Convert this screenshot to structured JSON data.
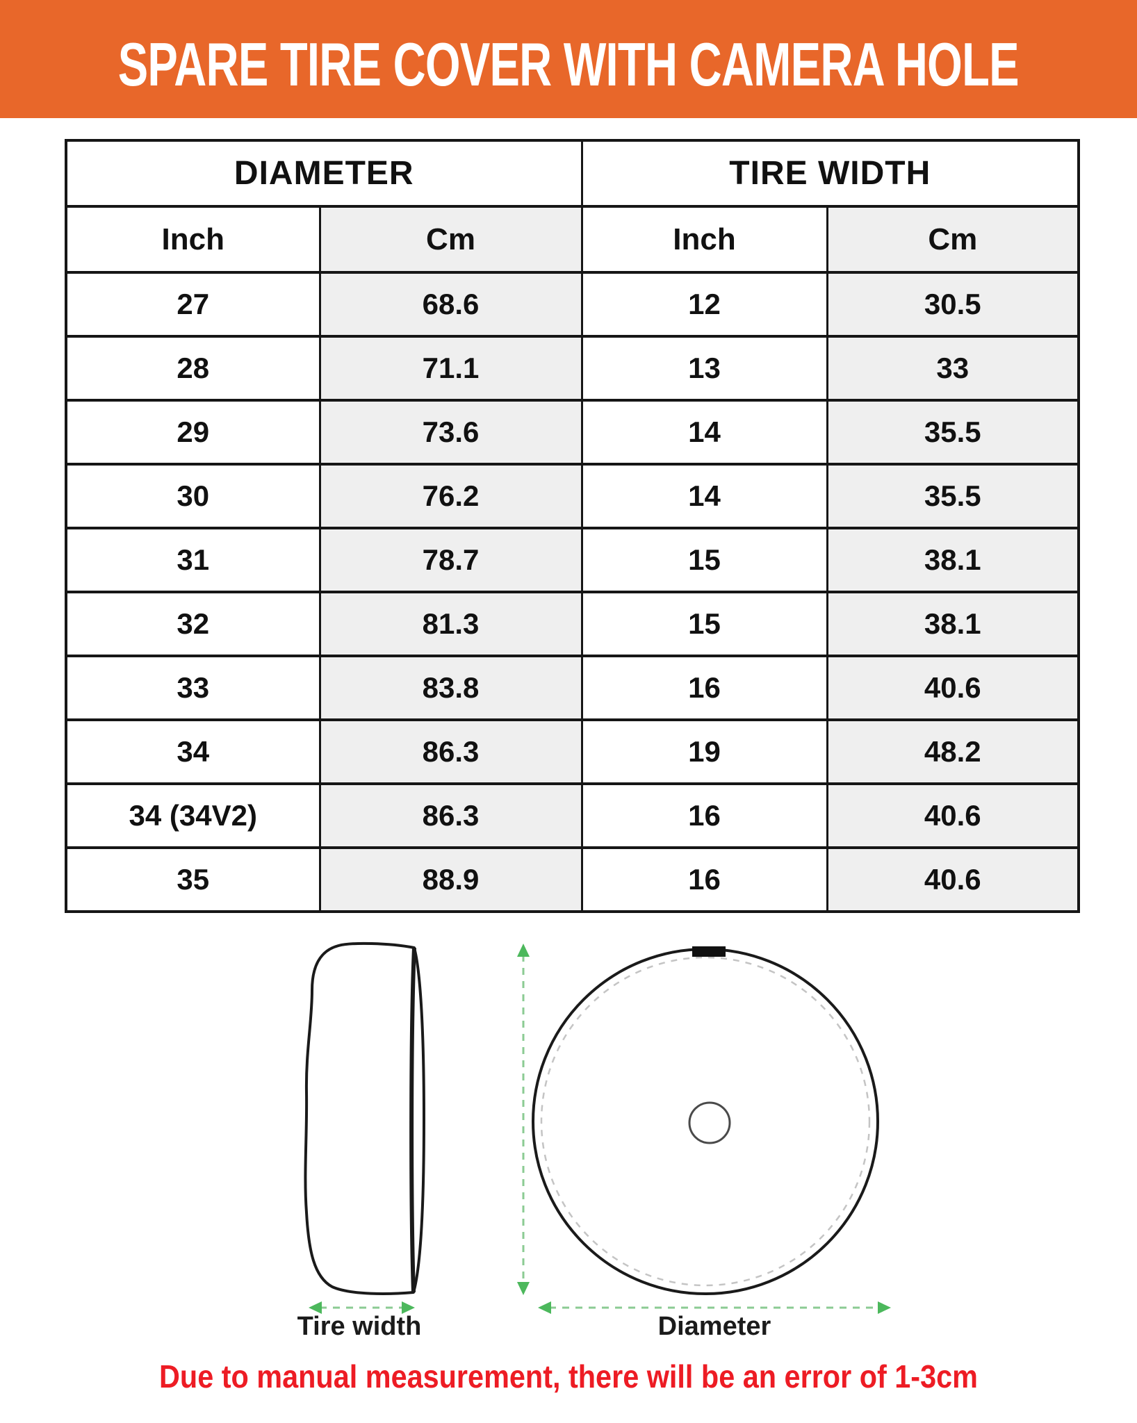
{
  "banner": {
    "title": "SPARE TIRE COVER WITH CAMERA HOLE",
    "bg_color": "#E8672A",
    "text_color": "#FFFFFF"
  },
  "table": {
    "group_headers": {
      "diameter": "DIAMETER",
      "tire_width": "TIRE WIDTH"
    },
    "sub_headers": {
      "col1": "Inch",
      "col2": "Cm",
      "col3": "Inch",
      "col4": "Cm"
    },
    "shaded_column_color": "#EFEFEF",
    "rows": [
      [
        "27",
        "68.6",
        "12",
        "30.5"
      ],
      [
        "28",
        "71.1",
        "13",
        "33"
      ],
      [
        "29",
        "73.6",
        "14",
        "35.5"
      ],
      [
        "30",
        "76.2",
        "14",
        "35.5"
      ],
      [
        "31",
        "78.7",
        "15",
        "38.1"
      ],
      [
        "32",
        "81.3",
        "15",
        "38.1"
      ],
      [
        "33",
        "83.8",
        "16",
        "40.6"
      ],
      [
        "34",
        "86.3",
        "19",
        "48.2"
      ],
      [
        "34 (34V2)",
        "86.3",
        "16",
        "40.6"
      ],
      [
        "35",
        "88.9",
        "16",
        "40.6"
      ]
    ]
  },
  "chart_data": {
    "type": "table",
    "title": "SPARE TIRE COVER WITH CAMERA HOLE",
    "columns": [
      "Diameter Inch",
      "Diameter Cm",
      "Tire Width Inch",
      "Tire Width Cm"
    ],
    "rows": [
      [
        "27",
        "68.6",
        "12",
        "30.5"
      ],
      [
        "28",
        "71.1",
        "13",
        "33"
      ],
      [
        "29",
        "73.6",
        "14",
        "35.5"
      ],
      [
        "30",
        "76.2",
        "14",
        "35.5"
      ],
      [
        "31",
        "78.7",
        "15",
        "38.1"
      ],
      [
        "32",
        "81.3",
        "15",
        "38.1"
      ],
      [
        "33",
        "83.8",
        "16",
        "40.6"
      ],
      [
        "34",
        "86.3",
        "19",
        "48.2"
      ],
      [
        "34 (34V2)",
        "86.3",
        "16",
        "40.6"
      ],
      [
        "35",
        "88.9",
        "16",
        "40.6"
      ]
    ]
  },
  "diagram": {
    "tire_width_label": "Tire width",
    "diameter_label": "Diameter",
    "arrow_head_color": "#4CB85C",
    "arrow_dash_color": "#8BCB93",
    "outline_color": "#1A1A1A"
  },
  "note": {
    "text": "Due to manual measurement, there will be an error of 1-3cm",
    "color": "#ED1C24"
  }
}
